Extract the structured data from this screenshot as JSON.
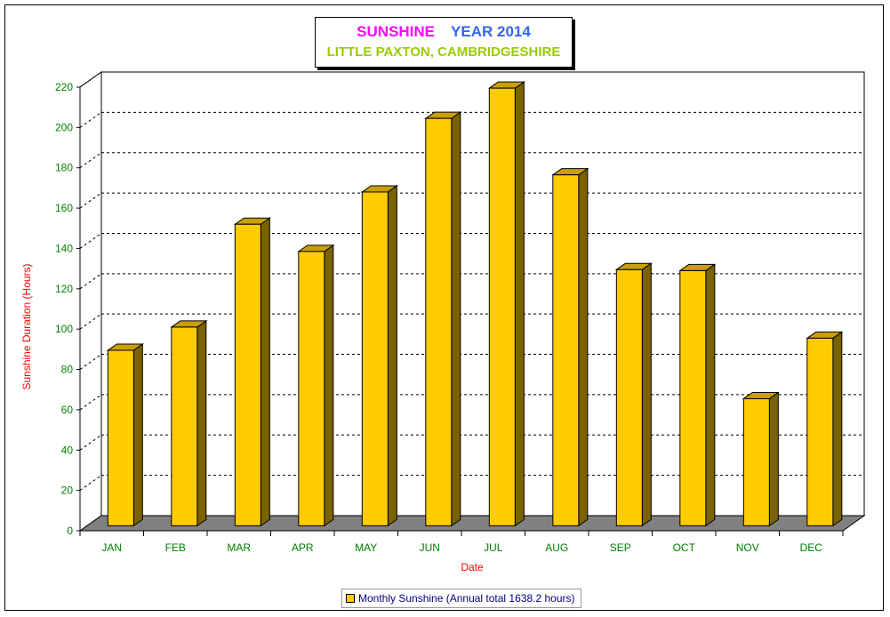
{
  "title": {
    "part1": "SUNSHINE",
    "part2": "YEAR 2014",
    "subtitle": "LITTLE PAXTON, CAMBRIDGESHIRE"
  },
  "legend": {
    "label": "Monthly Sunshine (Annual total 1638.2 hours)"
  },
  "colors": {
    "bar_front": "#ffcc00",
    "bar_side": "#7a6200",
    "bar_top": "#c8a000",
    "floor": "#808080",
    "tick_text": "#008000",
    "axis_title": "#ff0000",
    "title_part1": "#ff00ff",
    "title_part2": "#3366ee",
    "subtitle": "#99cc00",
    "legend_text": "#000080"
  },
  "chart_data": {
    "type": "bar",
    "categories": [
      "JAN",
      "FEB",
      "MAR",
      "APR",
      "MAY",
      "JUN",
      "JUL",
      "AUG",
      "SEP",
      "OCT",
      "NOV",
      "DEC"
    ],
    "series": [
      {
        "name": "Monthly Sunshine (Annual total 1638.2 hours)",
        "values": [
          87,
          98.5,
          149.5,
          136,
          165.5,
          202,
          217,
          174,
          127,
          126.5,
          63,
          93
        ]
      }
    ],
    "xlabel": "Date",
    "ylabel": "Sunshine Duration (Hours)",
    "ylim": [
      0,
      220
    ],
    "yticks": [
      0,
      20,
      40,
      60,
      80,
      100,
      120,
      140,
      160,
      180,
      200,
      220
    ],
    "grid": true,
    "style": "3d",
    "legend_position": "bottom"
  }
}
